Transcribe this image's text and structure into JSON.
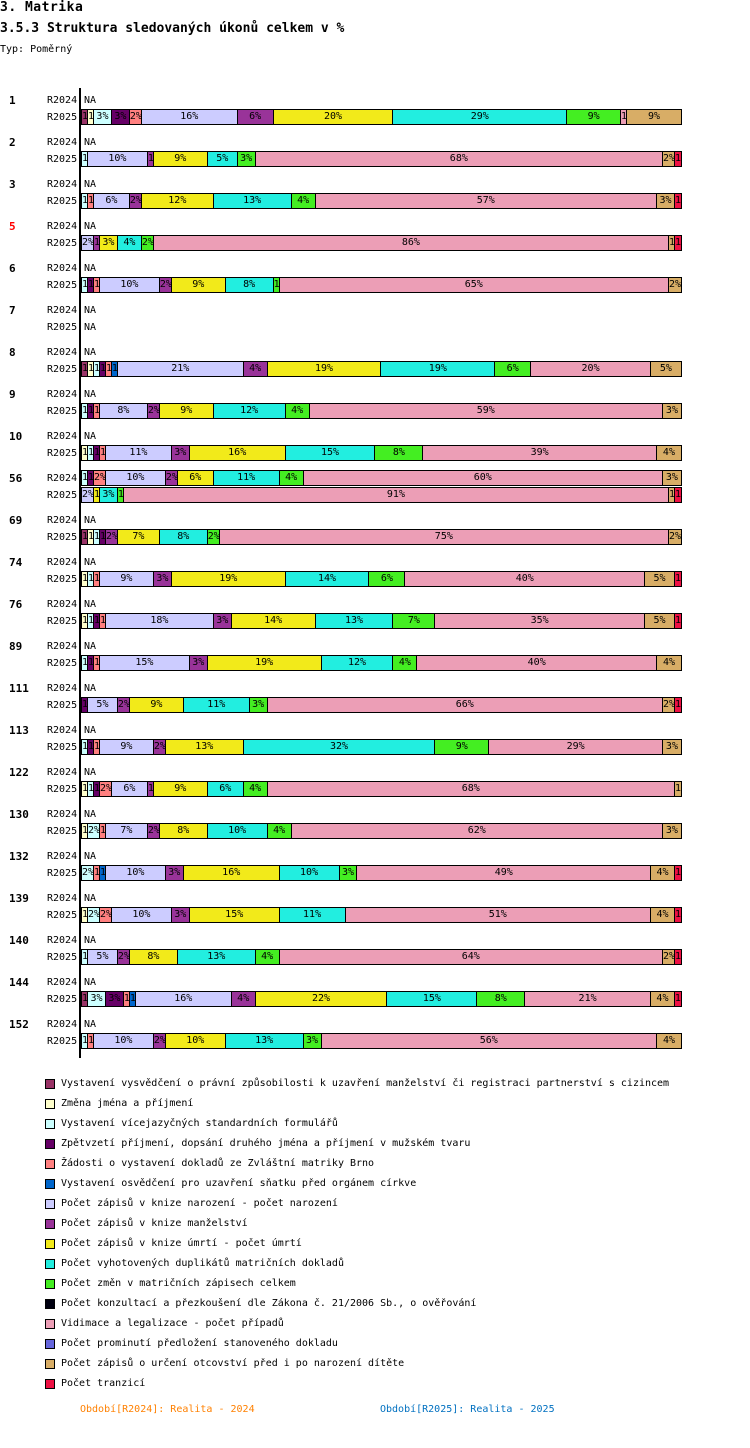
{
  "header": {
    "title": "3. Matrika",
    "subtitle": "3.5.3 Struktura sledovaných úkonů celkem v %",
    "type_label": "Typ: Poměrný"
  },
  "chart_data": {
    "type": "bar",
    "orientation": "horizontal",
    "stacked": true,
    "normalized": true,
    "title": "3.5.3 Struktura sledovaných úkonů celkem v %",
    "xlim": [
      0,
      100
    ],
    "na_label": "NA",
    "series": [
      {
        "name": "Vystavení vysvědčení o právní způsobilosti k uzavření manželství či registraci partnerství s cizincem",
        "color": "#993366"
      },
      {
        "name": "Změna jména a příjmení",
        "color": "#FFFFCC"
      },
      {
        "name": "Vystavení vícejazyčných standardních formulářů",
        "color": "#CCFFFF"
      },
      {
        "name": "Zpětvzetí příjmení, dopsání druhého jména a příjmení v mužském tvaru",
        "color": "#660066"
      },
      {
        "name": "Žádosti o vystavení dokladů ze Zvláštní matriky Brno",
        "color": "#FF8080"
      },
      {
        "name": "Vystavení osvědčení pro uzavření sňatku před orgánem církve",
        "color": "#0066CC"
      },
      {
        "name": "Počet zápisů v knize narození - počet narození",
        "color": "#CCCCFF"
      },
      {
        "name": "Počet zápisů v knize manželství",
        "color": "#993399"
      },
      {
        "name": "Počet zápisů v knize úmrtí - počet úmrtí",
        "color": "#F2EA1A"
      },
      {
        "name": "Počet vyhotovených duplikátů matričních dokladů",
        "color": "#22EEE0"
      },
      {
        "name": "Počet změn v matričních zápisech celkem",
        "color": "#44EE22"
      },
      {
        "name": "Počet  konzultací a přezkoušení dle Zákona č. 21/2006 Sb., o ověřování",
        "color": "#000011"
      },
      {
        "name": "Vidimace a legalizace - počet případů",
        "color": "#EC9EB6"
      },
      {
        "name": "Počet prominutí předložení stanoveného dokladu",
        "color": "#6666DD"
      },
      {
        "name": "Počet zápisů o určení otcovství před i po narození dítěte",
        "color": "#D8AD66"
      },
      {
        "name": "Počet tranzicí",
        "color": "#EE1144"
      }
    ],
    "groups": [
      {
        "id": "1",
        "rows": [
          {
            "label": "R2024",
            "values": null
          },
          {
            "label": "R2025",
            "values": [
              1,
              1,
              3,
              3,
              2,
              0,
              16,
              6,
              20,
              29,
              9,
              0,
              1,
              0,
              9,
              0
            ]
          }
        ]
      },
      {
        "id": "2",
        "rows": [
          {
            "label": "R2024",
            "values": null
          },
          {
            "label": "R2025",
            "values": [
              0,
              0,
              1,
              0,
              0,
              0,
              10,
              1,
              9,
              5,
              3,
              0,
              68,
              0,
              2,
              1
            ]
          }
        ]
      },
      {
        "id": "3",
        "rows": [
          {
            "label": "R2024",
            "values": null
          },
          {
            "label": "R2025",
            "values": [
              0,
              0,
              1,
              0,
              1,
              0,
              6,
              2,
              12,
              13,
              4,
              0,
              57,
              0,
              3,
              1
            ]
          }
        ]
      },
      {
        "id": "5",
        "highlight": "#FF0000",
        "rows": [
          {
            "label": "R2024",
            "values": null
          },
          {
            "label": "R2025",
            "values": [
              0,
              0,
              0,
              0,
              0,
              0,
              2,
              1,
              3,
              4,
              2,
              0,
              86,
              0,
              1,
              1
            ]
          }
        ]
      },
      {
        "id": "6",
        "rows": [
          {
            "label": "R2024",
            "values": null
          },
          {
            "label": "R2025",
            "values": [
              0,
              0,
              1,
              1,
              1,
              0,
              10,
              2,
              9,
              8,
              1,
              0,
              65,
              0,
              2,
              0
            ]
          }
        ]
      },
      {
        "id": "7",
        "rows": [
          {
            "label": "R2024",
            "values": null
          },
          {
            "label": "R2025",
            "values": null
          }
        ]
      },
      {
        "id": "8",
        "rows": [
          {
            "label": "R2024",
            "values": null
          },
          {
            "label": "R2025",
            "values": [
              1,
              1,
              1,
              1,
              1,
              1,
              21,
              4,
              19,
              19,
              6,
              0,
              20,
              0,
              5,
              0
            ]
          }
        ]
      },
      {
        "id": "9",
        "rows": [
          {
            "label": "R2024",
            "values": null
          },
          {
            "label": "R2025",
            "values": [
              0,
              0,
              1,
              1,
              1,
              0,
              8,
              2,
              9,
              12,
              4,
              0,
              59,
              0,
              3,
              0
            ]
          }
        ]
      },
      {
        "id": "10",
        "rows": [
          {
            "label": "R2024",
            "values": null
          },
          {
            "label": "R2025",
            "values": [
              0,
              1,
              1,
              1,
              1,
              0,
              11,
              3,
              16,
              15,
              8,
              0,
              39,
              0,
              4,
              0
            ]
          }
        ]
      },
      {
        "id": "56",
        "rows": [
          {
            "label": "R2024",
            "values": [
              0,
              0,
              1,
              1,
              2,
              0,
              10,
              2,
              6,
              11,
              4,
              0,
              60,
              0,
              3,
              0
            ]
          },
          {
            "label": "R2025",
            "values": [
              0,
              0,
              0,
              0,
              0,
              0,
              2,
              0,
              1,
              3,
              1,
              0,
              91,
              0,
              1,
              1
            ]
          }
        ]
      },
      {
        "id": "69",
        "rows": [
          {
            "label": "R2024",
            "values": null
          },
          {
            "label": "R2025",
            "values": [
              1,
              1,
              1,
              1,
              0,
              0,
              0,
              2,
              7,
              8,
              2,
              0,
              75,
              0,
              2,
              0
            ]
          }
        ]
      },
      {
        "id": "74",
        "rows": [
          {
            "label": "R2024",
            "values": null
          },
          {
            "label": "R2025",
            "values": [
              0,
              1,
              1,
              0,
              1,
              0,
              9,
              3,
              19,
              14,
              6,
              0,
              40,
              0,
              5,
              1
            ]
          }
        ]
      },
      {
        "id": "76",
        "rows": [
          {
            "label": "R2024",
            "values": null
          },
          {
            "label": "R2025",
            "values": [
              0,
              1,
              1,
              1,
              1,
              0,
              18,
              3,
              14,
              13,
              7,
              0,
              35,
              0,
              5,
              1
            ]
          }
        ]
      },
      {
        "id": "89",
        "rows": [
          {
            "label": "R2024",
            "values": null
          },
          {
            "label": "R2025",
            "values": [
              0,
              0,
              1,
              1,
              1,
              0,
              15,
              3,
              19,
              12,
              4,
              0,
              40,
              0,
              4,
              0
            ]
          }
        ]
      },
      {
        "id": "111",
        "rows": [
          {
            "label": "R2024",
            "values": null
          },
          {
            "label": "R2025",
            "values": [
              0,
              0,
              0,
              1,
              0,
              0,
              5,
              2,
              9,
              11,
              3,
              0,
              66,
              0,
              2,
              1
            ]
          }
        ]
      },
      {
        "id": "113",
        "rows": [
          {
            "label": "R2024",
            "values": null
          },
          {
            "label": "R2025",
            "values": [
              0,
              0,
              1,
              1,
              1,
              0,
              9,
              2,
              13,
              32,
              9,
              0,
              29,
              0,
              3,
              0
            ]
          }
        ]
      },
      {
        "id": "122",
        "rows": [
          {
            "label": "R2024",
            "values": null
          },
          {
            "label": "R2025",
            "values": [
              0,
              1,
              1,
              1,
              2,
              0,
              6,
              1,
              9,
              6,
              4,
              0,
              68,
              0,
              1,
              0
            ]
          }
        ]
      },
      {
        "id": "130",
        "rows": [
          {
            "label": "R2024",
            "values": null
          },
          {
            "label": "R2025",
            "values": [
              0,
              1,
              2,
              0,
              1,
              0,
              7,
              2,
              8,
              10,
              4,
              0,
              62,
              0,
              3,
              0
            ]
          }
        ]
      },
      {
        "id": "132",
        "rows": [
          {
            "label": "R2024",
            "values": null
          },
          {
            "label": "R2025",
            "values": [
              0,
              0,
              2,
              0,
              1,
              1,
              10,
              3,
              16,
              10,
              3,
              0,
              49,
              0,
              4,
              1
            ]
          }
        ]
      },
      {
        "id": "139",
        "rows": [
          {
            "label": "R2024",
            "values": null
          },
          {
            "label": "R2025",
            "values": [
              0,
              1,
              2,
              0,
              2,
              0,
              10,
              3,
              15,
              11,
              0,
              0,
              51,
              0,
              4,
              1
            ]
          }
        ]
      },
      {
        "id": "140",
        "rows": [
          {
            "label": "R2024",
            "values": null
          },
          {
            "label": "R2025",
            "values": [
              0,
              0,
              1,
              0,
              0,
              0,
              5,
              2,
              8,
              13,
              4,
              0,
              64,
              0,
              2,
              1
            ]
          }
        ]
      },
      {
        "id": "144",
        "rows": [
          {
            "label": "R2024",
            "values": null
          },
          {
            "label": "R2025",
            "values": [
              1,
              0,
              3,
              3,
              1,
              1,
              16,
              4,
              22,
              15,
              8,
              0,
              21,
              0,
              4,
              1
            ]
          }
        ]
      },
      {
        "id": "152",
        "rows": [
          {
            "label": "R2024",
            "values": null
          },
          {
            "label": "R2025",
            "values": [
              0,
              0,
              1,
              0,
              1,
              0,
              10,
              2,
              10,
              13,
              3,
              0,
              56,
              0,
              4,
              0
            ]
          }
        ]
      }
    ]
  },
  "footer": {
    "period_2024": "Období[R2024]: Realita - 2024",
    "period_2024_color": "#FF8000",
    "period_2025": "Období[R2025]: Realita - 2025",
    "period_2025_color": "#0070C0"
  }
}
